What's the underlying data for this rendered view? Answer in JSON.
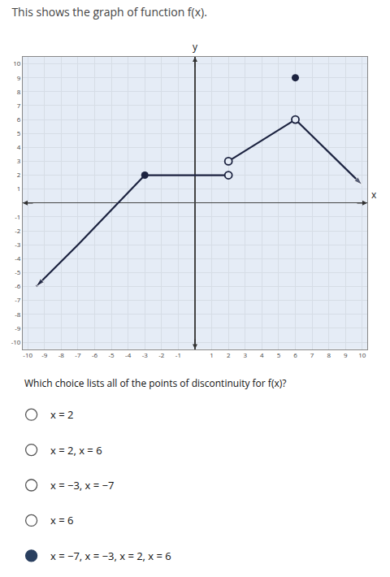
{
  "chart_data": {
    "type": "line",
    "title": "This shows the graph of function f(x).",
    "xlabel": "x",
    "ylabel": "y",
    "xlim": [
      -10.3,
      10.3
    ],
    "ylim": [
      -10.5,
      10.5
    ],
    "xticks": [
      -10,
      -9,
      -8,
      -7,
      -6,
      -5,
      -4,
      -3,
      -2,
      -1,
      1,
      2,
      3,
      4,
      5,
      6,
      7,
      8,
      9,
      10
    ],
    "yticks": [
      -10,
      -9,
      -8,
      -7,
      -6,
      -5,
      -4,
      -3,
      -2,
      -1,
      1,
      2,
      3,
      4,
      5,
      6,
      7,
      8,
      9,
      10
    ],
    "grid": true,
    "series": [
      {
        "type": "line",
        "color": "#1c2340",
        "marker": "arrow",
        "x": [
          -3,
          -7,
          -9.5
        ],
        "values": [
          2,
          -3,
          -6.0
        ]
      },
      {
        "type": "line",
        "color": "#1c2340",
        "x": [
          -3,
          2
        ],
        "values": [
          2,
          2
        ]
      },
      {
        "type": "line",
        "color": "#1c2340",
        "x": [
          2,
          6
        ],
        "values": [
          3,
          6
        ]
      },
      {
        "type": "line",
        "color": "#1c2340",
        "marker": "arrow",
        "x": [
          6,
          10.0
        ],
        "values": [
          6,
          1.3
        ]
      },
      {
        "type": "scatter",
        "color": "#1c2340",
        "marker": "filled",
        "x": [
          -3,
          6
        ],
        "values": [
          2,
          9
        ]
      },
      {
        "type": "scatter",
        "color": "#1c2340",
        "marker": "open",
        "x": [
          2,
          6,
          2
        ],
        "values": [
          2,
          6,
          3
        ]
      }
    ],
    "question": "Which choice lists all of the points of discontinuity for f(x)?",
    "choices": [
      {
        "text": "x = 2",
        "selected": false
      },
      {
        "text": "x = 2, x = 6",
        "selected": false
      },
      {
        "text": "x = −3, x = −7",
        "selected": false
      },
      {
        "text": "x = 6",
        "selected": false
      },
      {
        "text": "x = −7, x = −3, x = 2, x = 6",
        "selected": true
      }
    ]
  }
}
